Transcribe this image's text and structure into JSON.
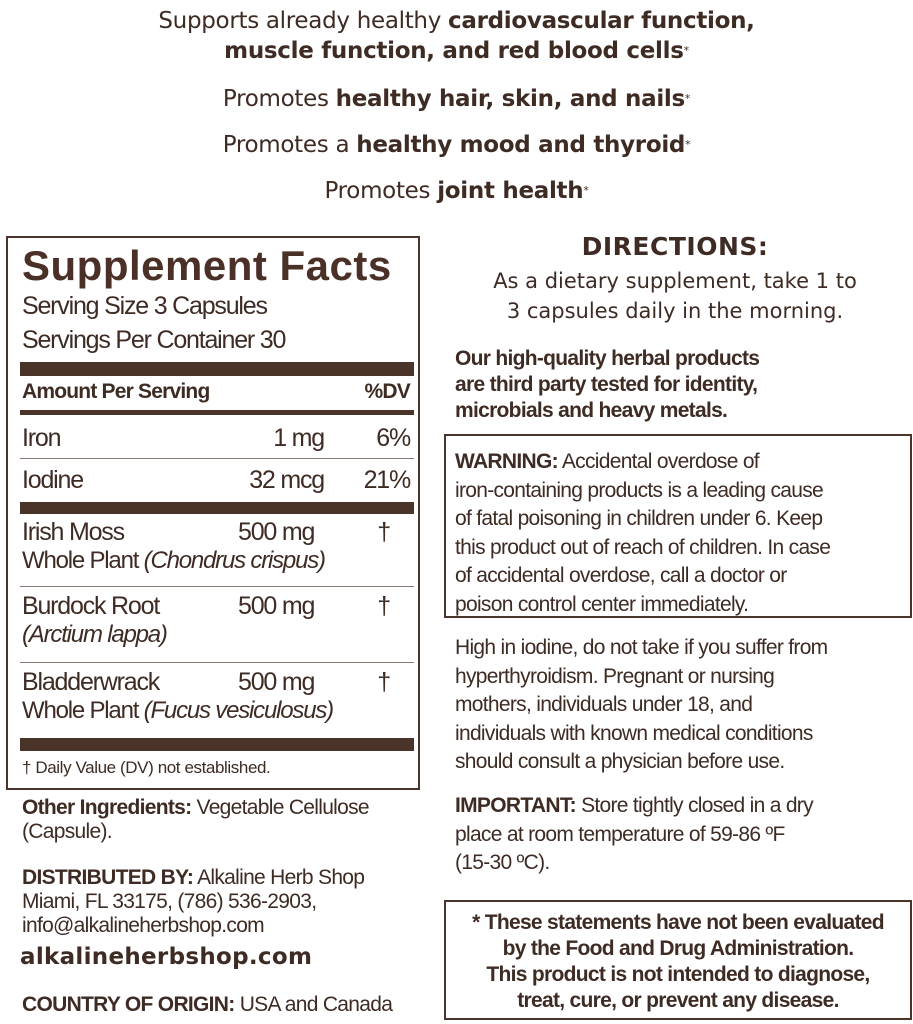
{
  "claims": [
    {
      "plain": "Supports already healthy ",
      "bold": "cardiovascular function,",
      "bold2": "muscle function, and red blood cells",
      "mark": "*"
    },
    {
      "plain": "Promotes ",
      "bold": "healthy hair, skin, and nails",
      "mark": "*"
    },
    {
      "plain": "Promotes a ",
      "bold": "healthy mood and thyroid",
      "mark": "*"
    },
    {
      "plain": "Promotes ",
      "bold": "joint health",
      "mark": "*"
    }
  ],
  "supplement_facts": {
    "title": "Supplement Facts",
    "serving_size": "Serving Size 3 Capsules",
    "servings_per_container": "Servings Per Container 30",
    "header_amount": "Amount Per Serving",
    "header_dv": "%DV",
    "rows": [
      {
        "name": "Iron",
        "amount": "1 mg",
        "dv": "6%"
      },
      {
        "name": "Iodine",
        "amount": "32 mcg",
        "dv": "21%"
      },
      {
        "name": "Irish Moss",
        "sub_plain": "Whole Plant ",
        "sub_italic": "(Chondrus crispus)",
        "amount": "500 mg",
        "dv": "†"
      },
      {
        "name": "Burdock Root",
        "sub_italic": "(Arctium lappa)",
        "amount": "500 mg",
        "dv": "†"
      },
      {
        "name": "Bladderwrack",
        "sub_plain": "Whole Plant ",
        "sub_italic": "(Fucus vesiculosus)",
        "amount": "500 mg",
        "dv": "†"
      }
    ],
    "footnote": "† Daily Value (DV) not established."
  },
  "other_ingredients": {
    "label": "Other Ingredients:",
    "text": " Vegetable Cellulose",
    "text2": "(Capsule)."
  },
  "distributed": {
    "label": "DISTRIBUTED BY:",
    "line1": " Alkaline Herb Shop",
    "line2": "Miami, FL 33175, (786) 536-2903,",
    "line3": "info@alkalineherbshop.com"
  },
  "website": "alkalineherbshop.com",
  "origin": {
    "label": "COUNTRY OF ORIGIN:",
    "text": " USA and Canada"
  },
  "directions": {
    "title": "DIRECTIONS:",
    "line1": "As a dietary supplement, take 1 to",
    "line2": "3 capsules daily in the morning."
  },
  "quality": [
    "Our high-quality herbal products",
    "are third party tested for identity,",
    "microbials and heavy metals."
  ],
  "warning": {
    "label": "WARNING:",
    "lines": [
      " Accidental overdose of",
      "iron-containing products is a leading cause",
      "of fatal poisoning in children under 6. Keep",
      "this product out of reach of children. In case",
      "of accidental overdose, call a doctor or",
      "poison control center immediately."
    ]
  },
  "iodine_note": [
    "High in iodine, do not take if you suffer from",
    "hyperthyroidism. Pregnant or nursing",
    "mothers, individuals under 18, and",
    "individuals with known medical conditions",
    "should consult a physician before use."
  ],
  "important": {
    "label": "IMPORTANT:",
    "lines": [
      " Store tightly closed in a dry",
      "place at room temperature of 59-86 ºF",
      "(15-30 ºC)."
    ]
  },
  "disclaimer": [
    "* These statements have not been evaluated",
    "by the Food and Drug Administration.",
    "This product is not intended to diagnose,",
    "treat, cure, or prevent any disease."
  ],
  "colors": {
    "text": "#3d2b24",
    "bars": "#4a3329"
  }
}
